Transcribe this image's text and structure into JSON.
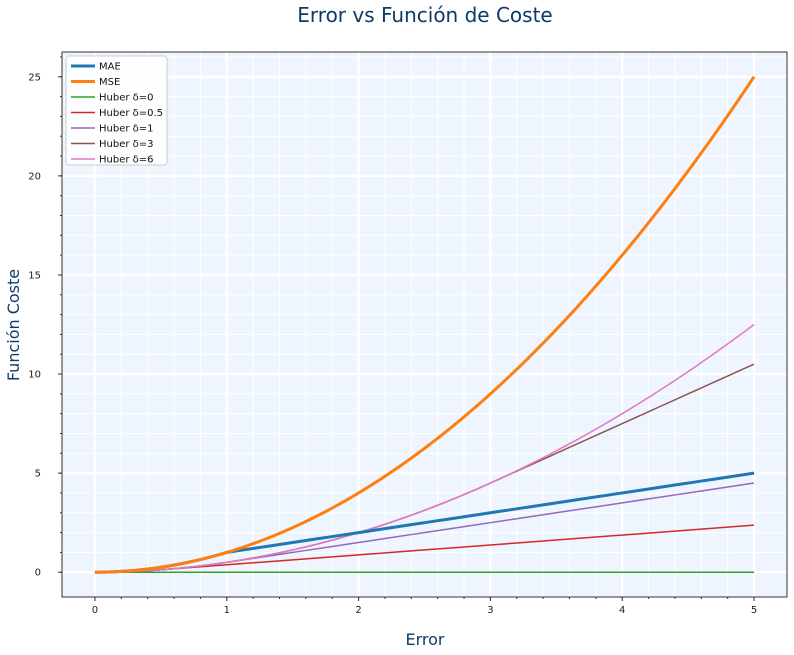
{
  "chart_data": {
    "type": "line",
    "title": "Error vs Función de Coste",
    "xlabel": "Error",
    "ylabel": "Función Coste",
    "xlim": [
      -0.25,
      5.25
    ],
    "ylim": [
      -1.25,
      26.25
    ],
    "x_ticks": [
      "0",
      "1",
      "2",
      "3",
      "4",
      "5"
    ],
    "y_ticks": [
      "0",
      "5",
      "10",
      "15",
      "20",
      "25"
    ],
    "grid": true,
    "background": "#eef5ff",
    "legend_position": "top-left",
    "series": [
      {
        "name": "MAE",
        "color": "#1f77b4",
        "width": "thick",
        "x": [
          0,
          1,
          2,
          3,
          4,
          5
        ],
        "y": [
          0,
          1,
          2,
          3,
          4,
          5
        ]
      },
      {
        "name": "MSE",
        "color": "#ff7f0e",
        "width": "thick",
        "x": [
          0,
          0.5,
          1,
          1.5,
          2,
          2.5,
          3,
          3.5,
          4,
          4.5,
          5
        ],
        "y": [
          0,
          0.25,
          1,
          2.25,
          4,
          6.25,
          9,
          12.25,
          16,
          20.25,
          25
        ]
      },
      {
        "name": "Huber δ=0",
        "color": "#2ca02c",
        "width": "thin",
        "x": [
          0,
          5
        ],
        "y": [
          0,
          0
        ]
      },
      {
        "name": "Huber δ=0.5",
        "color": "#d62728",
        "width": "thin",
        "x": [
          0,
          0.5,
          5
        ],
        "y": [
          0,
          0.125,
          2.375
        ]
      },
      {
        "name": "Huber δ=1",
        "color": "#9467bd",
        "width": "thin",
        "x": [
          0,
          0.25,
          0.5,
          0.75,
          1,
          5
        ],
        "y": [
          0,
          0.03125,
          0.125,
          0.28125,
          0.5,
          4.5
        ]
      },
      {
        "name": "Huber δ=3",
        "color": "#8c564b",
        "width": "thin",
        "x": [
          0,
          0.5,
          1,
          1.5,
          2,
          2.5,
          3,
          5
        ],
        "y": [
          0,
          0.125,
          0.5,
          1.125,
          2,
          3.125,
          4.5,
          10.5
        ]
      },
      {
        "name": "Huber δ=6",
        "color": "#e377c2",
        "width": "thin",
        "x": [
          0,
          0.5,
          1,
          1.5,
          2,
          2.5,
          3,
          3.5,
          4,
          4.5,
          5
        ],
        "y": [
          0,
          0.125,
          0.5,
          1.125,
          2,
          3.125,
          4.5,
          6.125,
          8,
          10.125,
          12.5
        ]
      }
    ]
  }
}
